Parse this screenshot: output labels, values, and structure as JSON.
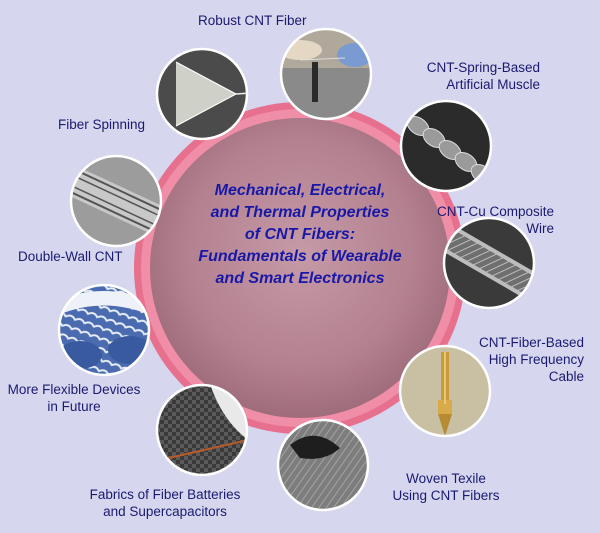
{
  "center": {
    "title_lines": [
      "Mechanical, Electrical,",
      "and Thermal Properties",
      "of CNT Fibers:",
      "Fundamentals of Wearable",
      "and Smart Electronics"
    ]
  },
  "labels": {
    "robust_fiber": [
      "Robust CNT Fiber"
    ],
    "spring_muscle": [
      "CNT-Spring-Based",
      "Artificial Muscle"
    ],
    "fiber_spinning": [
      "Fiber Spinning"
    ],
    "cu_composite": [
      "CNT-Cu Composite",
      "Wire"
    ],
    "double_wall": [
      "Double-Wall CNT"
    ],
    "hf_cable": [
      "CNT-Fiber-Based",
      "High Frequency",
      "Cable"
    ],
    "flexible_devices": [
      "More Flexible Devices",
      "in Future"
    ],
    "fabrics": [
      "Fabrics of Fiber Batteries",
      "and Supercapacitors"
    ],
    "woven_textile": [
      "Woven Texile",
      "Using CNT Fibers"
    ]
  },
  "colors": {
    "background": "#d6d6ee",
    "ring": "#e6708e",
    "center_fill": "#b98a98",
    "title_text": "#1818a8",
    "label_text": "#1a1a70"
  }
}
